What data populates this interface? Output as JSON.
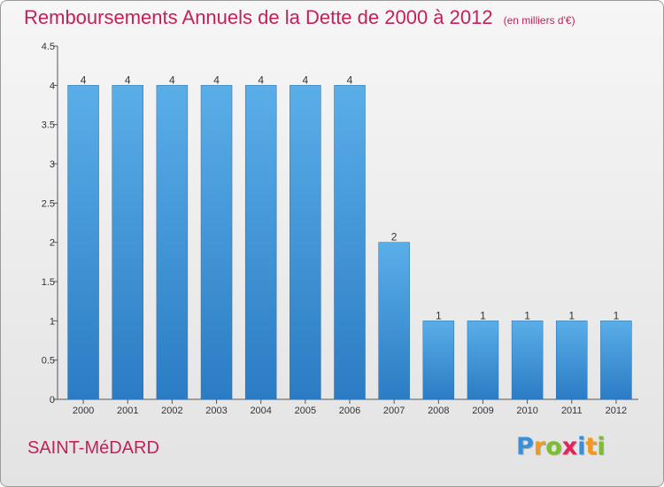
{
  "header": {
    "title": "Remboursements Annuels de la Dette de 2000 à 2012",
    "subtitle": "(en milliers d'€)"
  },
  "commune": "SAINT-MéDARD",
  "logo": {
    "text": "Proxiti",
    "letters": [
      {
        "ch": "P",
        "color": "#3b8fd9"
      },
      {
        "ch": "r",
        "color": "#f39a1e"
      },
      {
        "ch": "o",
        "color": "#7bbf2f"
      },
      {
        "ch": "x",
        "color": "#e0245e"
      },
      {
        "ch": "i",
        "color": "#3b8fd9"
      },
      {
        "ch": "t",
        "color": "#f39a1e"
      },
      {
        "ch": "i",
        "color": "#7bbf2f"
      }
    ]
  },
  "chart_data": {
    "type": "bar",
    "categories": [
      "2000",
      "2001",
      "2002",
      "2003",
      "2004",
      "2005",
      "2006",
      "2007",
      "2008",
      "2009",
      "2010",
      "2011",
      "2012"
    ],
    "values": [
      4,
      4,
      4,
      4,
      4,
      4,
      4,
      2,
      1,
      1,
      1,
      1,
      1
    ],
    "value_labels": [
      "4",
      "4",
      "4",
      "4",
      "4",
      "4",
      "4",
      "2",
      "1",
      "1",
      "1",
      "1",
      "1"
    ],
    "ylim": [
      0,
      4.5
    ],
    "yticks": [
      0,
      0.5,
      1,
      1.5,
      2,
      2.5,
      3,
      3.5,
      4,
      4.5
    ],
    "ytick_labels": [
      "0",
      "0.5",
      "1",
      "1.5",
      "2",
      "2.5",
      "3",
      "3.5",
      "4",
      "4.5"
    ],
    "bar_color_top": "#5aaee8",
    "bar_color_bottom": "#2b7cc4",
    "grid": false,
    "legend": "none"
  }
}
